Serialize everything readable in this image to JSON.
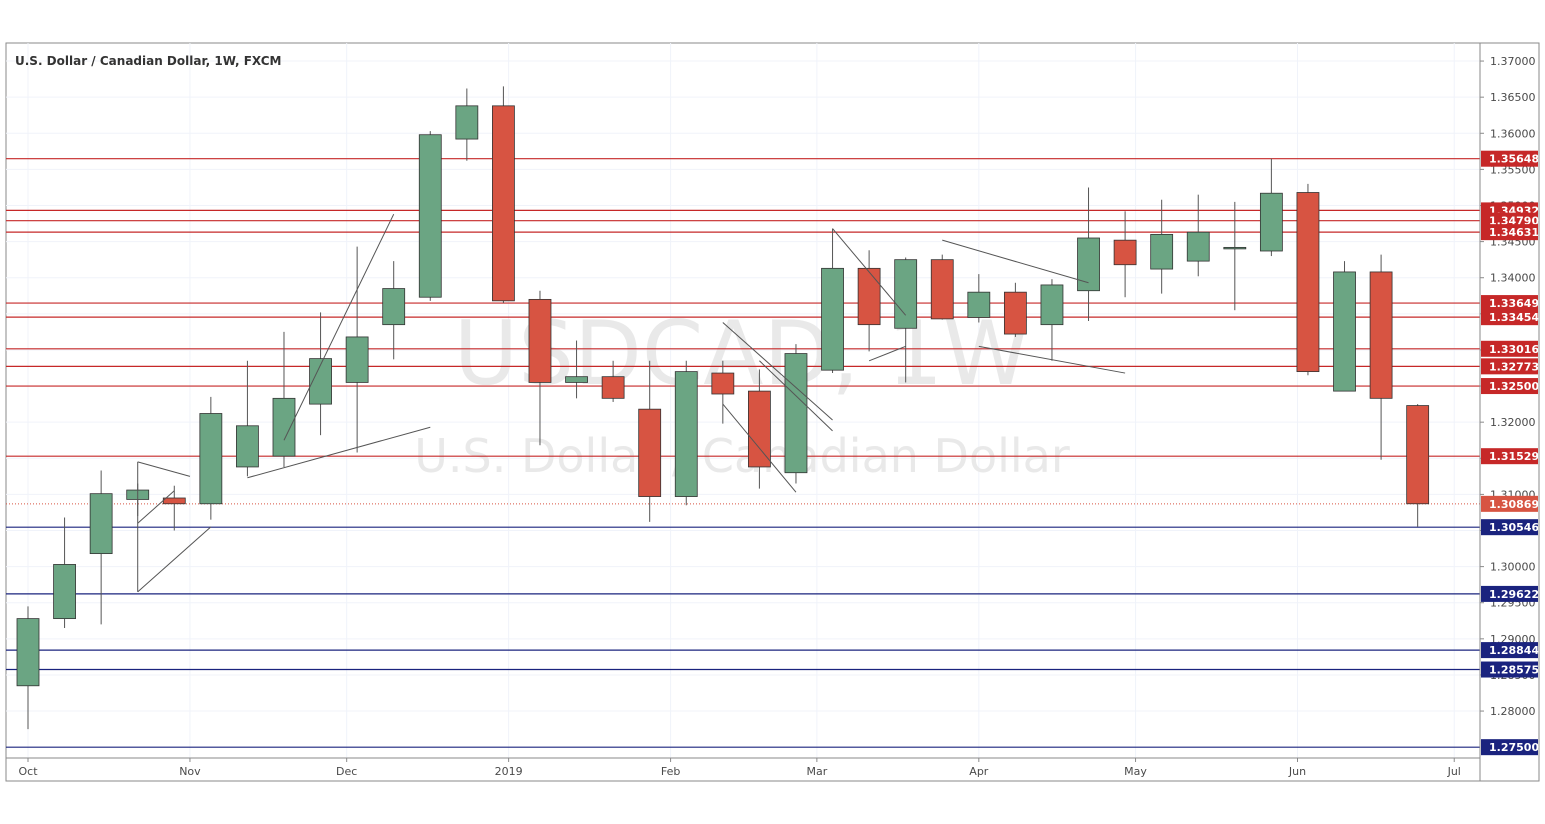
{
  "header": {
    "title": "U.S. Dollar / Canadian Dollar, 1W, FXCM"
  },
  "watermark": {
    "symbol": "USDCAD, 1W",
    "description": "U.S. Dollar / Canadian Dollar"
  },
  "colors": {
    "up": "#6ba583",
    "down": "#d75442",
    "resistance": "#c62828",
    "support": "#1a237e",
    "current": "#d75442",
    "grid": "#f0f3fa",
    "axis_text": "#4a4a4a",
    "watermark": "#e9e9e9",
    "trendline": "#555555"
  },
  "chart_data": {
    "type": "candlestick",
    "title": "U.S. Dollar / Canadian Dollar, 1W, FXCM",
    "symbol": "USDCAD",
    "timeframe": "1W",
    "ylim": [
      1.2735,
      1.3725
    ],
    "y_ticks": [
      1.28,
      1.285,
      1.29,
      1.295,
      1.3,
      1.305,
      1.31,
      1.315,
      1.32,
      1.325,
      1.33,
      1.335,
      1.34,
      1.345,
      1.35,
      1.355,
      1.36,
      1.365,
      1.37
    ],
    "x_labels": [
      {
        "label": "Oct",
        "date": "2018-10-01"
      },
      {
        "label": "Nov",
        "date": "2018-11-01"
      },
      {
        "label": "Dec",
        "date": "2018-12-01"
      },
      {
        "label": "2019",
        "date": "2019-01-01"
      },
      {
        "label": "Feb",
        "date": "2019-02-01"
      },
      {
        "label": "Mar",
        "date": "2019-03-01"
      },
      {
        "label": "Apr",
        "date": "2019-04-01"
      },
      {
        "label": "May",
        "date": "2019-05-01"
      },
      {
        "label": "Jun",
        "date": "2019-06-01"
      },
      {
        "label": "Jul",
        "date": "2019-07-01"
      }
    ],
    "candles": [
      {
        "date": "2018-10-01",
        "open": 1.2835,
        "high": 1.2945,
        "low": 1.2775,
        "close": 1.2928
      },
      {
        "date": "2018-10-08",
        "open": 1.2928,
        "high": 1.3068,
        "low": 1.2915,
        "close": 1.3003
      },
      {
        "date": "2018-10-15",
        "open": 1.3018,
        "high": 1.3133,
        "low": 1.292,
        "close": 1.3101
      },
      {
        "date": "2018-10-22",
        "open": 1.3093,
        "high": 1.3115,
        "low": 1.307,
        "close": 1.3106
      },
      {
        "date": "2018-10-29",
        "open": 1.3095,
        "high": 1.3112,
        "low": 1.305,
        "close": 1.3087
      },
      {
        "date": "2018-11-05",
        "open": 1.3087,
        "high": 1.3235,
        "low": 1.3065,
        "close": 1.3212
      },
      {
        "date": "2018-11-12",
        "open": 1.3138,
        "high": 1.3285,
        "low": 1.3125,
        "close": 1.3195
      },
      {
        "date": "2018-11-19",
        "open": 1.3153,
        "high": 1.3325,
        "low": 1.3138,
        "close": 1.3233
      },
      {
        "date": "2018-11-26",
        "open": 1.3225,
        "high": 1.3352,
        "low": 1.3182,
        "close": 1.3288
      },
      {
        "date": "2018-12-03",
        "open": 1.3255,
        "high": 1.3443,
        "low": 1.3158,
        "close": 1.3318
      },
      {
        "date": "2018-12-10",
        "open": 1.3335,
        "high": 1.3423,
        "low": 1.3287,
        "close": 1.3385
      },
      {
        "date": "2018-12-17",
        "open": 1.3373,
        "high": 1.3603,
        "low": 1.3368,
        "close": 1.3598
      },
      {
        "date": "2018-12-24",
        "open": 1.3592,
        "high": 1.3662,
        "low": 1.3562,
        "close": 1.3638
      },
      {
        "date": "2018-12-31",
        "open": 1.3638,
        "high": 1.3665,
        "low": 1.3365,
        "close": 1.3368
      },
      {
        "date": "2019-01-07",
        "open": 1.337,
        "high": 1.3382,
        "low": 1.3168,
        "close": 1.3255
      },
      {
        "date": "2019-01-14",
        "open": 1.3255,
        "high": 1.3313,
        "low": 1.3233,
        "close": 1.3263
      },
      {
        "date": "2019-01-21",
        "open": 1.3263,
        "high": 1.3285,
        "low": 1.3228,
        "close": 1.3233
      },
      {
        "date": "2019-01-28",
        "open": 1.3218,
        "high": 1.3285,
        "low": 1.3062,
        "close": 1.3097
      },
      {
        "date": "2019-02-04",
        "open": 1.3097,
        "high": 1.3285,
        "low": 1.3085,
        "close": 1.327
      },
      {
        "date": "2019-02-11",
        "open": 1.3268,
        "high": 1.3285,
        "low": 1.3198,
        "close": 1.3239
      },
      {
        "date": "2019-02-18",
        "open": 1.3243,
        "high": 1.3273,
        "low": 1.3108,
        "close": 1.3138
      },
      {
        "date": "2019-02-25",
        "open": 1.313,
        "high": 1.3308,
        "low": 1.3115,
        "close": 1.3295
      },
      {
        "date": "2019-03-04",
        "open": 1.3272,
        "high": 1.3468,
        "low": 1.3268,
        "close": 1.3413
      },
      {
        "date": "2019-03-11",
        "open": 1.3413,
        "high": 1.3438,
        "low": 1.3298,
        "close": 1.3335
      },
      {
        "date": "2019-03-18",
        "open": 1.333,
        "high": 1.3428,
        "low": 1.3255,
        "close": 1.3425
      },
      {
        "date": "2019-03-25",
        "open": 1.3425,
        "high": 1.3432,
        "low": 1.3342,
        "close": 1.3343
      },
      {
        "date": "2019-04-01",
        "open": 1.3345,
        "high": 1.3405,
        "low": 1.3338,
        "close": 1.338
      },
      {
        "date": "2019-04-08",
        "open": 1.338,
        "high": 1.3393,
        "low": 1.3318,
        "close": 1.3322
      },
      {
        "date": "2019-04-15",
        "open": 1.3335,
        "high": 1.3398,
        "low": 1.3285,
        "close": 1.339
      },
      {
        "date": "2019-04-22",
        "open": 1.3382,
        "high": 1.3525,
        "low": 1.334,
        "close": 1.3455
      },
      {
        "date": "2019-04-29",
        "open": 1.3452,
        "high": 1.3492,
        "low": 1.3373,
        "close": 1.3418
      },
      {
        "date": "2019-05-06",
        "open": 1.3412,
        "high": 1.3508,
        "low": 1.3378,
        "close": 1.346
      },
      {
        "date": "2019-05-13",
        "open": 1.3423,
        "high": 1.3515,
        "low": 1.3402,
        "close": 1.3463
      },
      {
        "date": "2019-05-20",
        "open": 1.3442,
        "high": 1.3505,
        "low": 1.3355,
        "close": 1.3442
      },
      {
        "date": "2019-05-27",
        "open": 1.3437,
        "high": 1.3565,
        "low": 1.343,
        "close": 1.3517
      },
      {
        "date": "2019-06-03",
        "open": 1.3518,
        "high": 1.353,
        "low": 1.3265,
        "close": 1.327
      },
      {
        "date": "2019-06-10",
        "open": 1.3243,
        "high": 1.3423,
        "low": 1.3243,
        "close": 1.3408
      },
      {
        "date": "2019-06-17",
        "open": 1.3408,
        "high": 1.3432,
        "low": 1.3148,
        "close": 1.3233
      },
      {
        "date": "2019-06-24",
        "open": 1.3223,
        "high": 1.3225,
        "low": 1.3055,
        "close": 1.3087
      }
    ],
    "levels": [
      {
        "value": 1.35648,
        "label": "1.35648",
        "kind": "resistance"
      },
      {
        "value": 1.34932,
        "label": "1.34932",
        "kind": "resistance"
      },
      {
        "value": 1.3479,
        "label": "1.34790",
        "kind": "resistance"
      },
      {
        "value": 1.34631,
        "label": "1.34631",
        "kind": "resistance"
      },
      {
        "value": 1.33649,
        "label": "1.33649",
        "kind": "resistance"
      },
      {
        "value": 1.33454,
        "label": "1.33454",
        "kind": "resistance"
      },
      {
        "value": 1.33016,
        "label": "1.33016",
        "kind": "resistance"
      },
      {
        "value": 1.32773,
        "label": "1.32773",
        "kind": "resistance"
      },
      {
        "value": 1.325,
        "label": "1.32500",
        "kind": "resistance"
      },
      {
        "value": 1.31529,
        "label": "1.31529",
        "kind": "resistance"
      },
      {
        "value": 1.30546,
        "label": "1.30546",
        "kind": "support"
      },
      {
        "value": 1.29622,
        "label": "1.29622",
        "kind": "support"
      },
      {
        "value": 1.28844,
        "label": "1.28844",
        "kind": "support"
      },
      {
        "value": 1.28575,
        "label": "1.28575",
        "kind": "support"
      },
      {
        "value": 1.275,
        "label": "1.27500",
        "kind": "support"
      }
    ],
    "current_price": {
      "value": 1.30869,
      "label": "1.30869"
    },
    "trendlines": [
      {
        "from": [
          "2018-10-22",
          1.2965
        ],
        "to": [
          "2018-11-05",
          1.3055
        ]
      },
      {
        "from": [
          "2018-10-22",
          1.2965
        ],
        "to": [
          "2018-10-22",
          1.3145
        ]
      },
      {
        "from": [
          "2018-10-22",
          1.3145
        ],
        "to": [
          "2018-11-01",
          1.3125
        ]
      },
      {
        "from": [
          "2018-10-22",
          1.306
        ],
        "to": [
          "2018-10-29",
          1.3105
        ]
      },
      {
        "from": [
          "2018-11-12",
          1.3123
        ],
        "to": [
          "2018-12-17",
          1.3193
        ]
      },
      {
        "from": [
          "2018-11-19",
          1.3175
        ],
        "to": [
          "2018-12-10",
          1.3488
        ]
      },
      {
        "from": [
          "2019-02-11",
          1.3338
        ],
        "to": [
          "2019-03-04",
          1.3203
        ]
      },
      {
        "from": [
          "2019-02-11",
          1.3225
        ],
        "to": [
          "2019-02-25",
          1.3103
        ]
      },
      {
        "from": [
          "2019-02-18",
          1.3285
        ],
        "to": [
          "2019-03-04",
          1.3188
        ]
      },
      {
        "from": [
          "2019-03-04",
          1.3468
        ],
        "to": [
          "2019-03-18",
          1.3348
        ]
      },
      {
        "from": [
          "2019-03-11",
          1.3285
        ],
        "to": [
          "2019-03-18",
          1.3305
        ]
      },
      {
        "from": [
          "2019-03-25",
          1.3452
        ],
        "to": [
          "2019-04-22",
          1.3393
        ]
      },
      {
        "from": [
          "2019-04-01",
          1.3305
        ],
        "to": [
          "2019-04-29",
          1.3268
        ]
      }
    ]
  }
}
